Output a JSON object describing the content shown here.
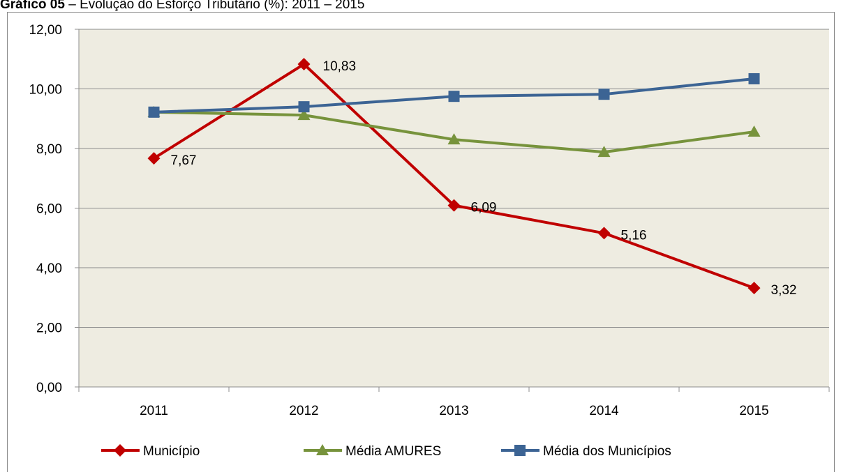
{
  "chart_data": {
    "type": "line",
    "title_number": "Gráfico 05",
    "title": "– Evolução do Esforço Tributário (%): 2011 – 2015",
    "categories": [
      "2011",
      "2012",
      "2013",
      "2014",
      "2015"
    ],
    "series": [
      {
        "name": "Município",
        "color": "#c00000",
        "marker": "diamond",
        "values": [
          7.67,
          10.83,
          6.09,
          5.16,
          3.32
        ],
        "value_labels": [
          "7,67",
          "10,83",
          "6,09",
          "5,16",
          "3,32"
        ]
      },
      {
        "name": "Média AMURES",
        "color": "#77933c",
        "marker": "triangle",
        "values": [
          9.22,
          9.12,
          8.3,
          7.88,
          8.56
        ]
      },
      {
        "name": "Média dos Municípios",
        "color": "#3c6494",
        "marker": "square",
        "values": [
          9.22,
          9.4,
          9.75,
          9.82,
          10.34
        ]
      }
    ],
    "ylim": [
      0,
      12
    ],
    "yticks": [
      {
        "value": 0,
        "label": "0,00"
      },
      {
        "value": 2,
        "label": "2,00"
      },
      {
        "value": 4,
        "label": "4,00"
      },
      {
        "value": 6,
        "label": "6,00"
      },
      {
        "value": 8,
        "label": "8,00"
      },
      {
        "value": 10,
        "label": "10,00"
      },
      {
        "value": 12,
        "label": "12,00"
      }
    ],
    "grid": true,
    "legend": "bottom",
    "plot_background": "#eeece1"
  }
}
